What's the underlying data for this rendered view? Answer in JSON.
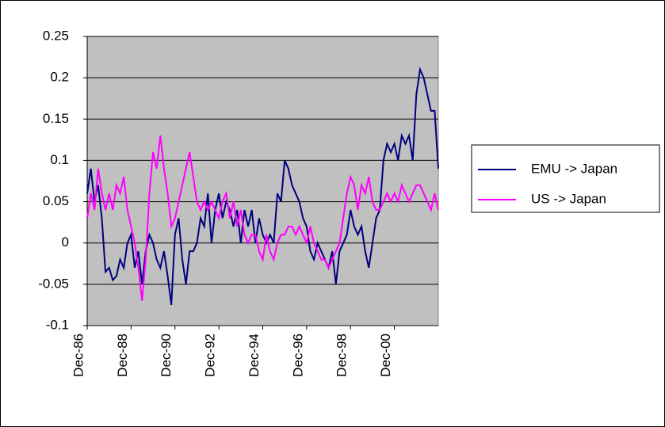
{
  "chart_data": {
    "type": "line",
    "categories": [
      "Dec-86",
      null,
      null,
      null,
      null,
      null,
      null,
      null,
      null,
      null,
      null,
      null,
      "Dec-88",
      null,
      null,
      null,
      null,
      null,
      null,
      null,
      null,
      null,
      null,
      null,
      "Dec-90",
      null,
      null,
      null,
      null,
      null,
      null,
      null,
      null,
      null,
      null,
      null,
      "Dec-92",
      null,
      null,
      null,
      null,
      null,
      null,
      null,
      null,
      null,
      null,
      null,
      "Dec-94",
      null,
      null,
      null,
      null,
      null,
      null,
      null,
      null,
      null,
      null,
      null,
      "Dec-96",
      null,
      null,
      null,
      null,
      null,
      null,
      null,
      null,
      null,
      null,
      null,
      "Dec-98",
      null,
      null,
      null,
      null,
      null,
      null,
      null,
      null,
      null,
      null,
      null,
      "Dec-00",
      null,
      null,
      null,
      null,
      null,
      null,
      null,
      null,
      null,
      null,
      null,
      null
    ],
    "series": [
      {
        "name": "EMU -> Japan",
        "color": "#000080",
        "values": [
          0.06,
          0.09,
          0.05,
          0.07,
          0.03,
          -0.035,
          -0.03,
          -0.045,
          -0.04,
          -0.02,
          -0.03,
          0.0,
          0.01,
          -0.03,
          -0.01,
          -0.05,
          -0.01,
          0.01,
          0.0,
          -0.02,
          -0.03,
          -0.01,
          -0.04,
          -0.075,
          0.01,
          0.03,
          -0.02,
          -0.05,
          -0.01,
          -0.01,
          0.0,
          0.03,
          0.02,
          0.06,
          0.0,
          0.04,
          0.06,
          0.03,
          0.05,
          0.04,
          0.02,
          0.04,
          0.0,
          0.04,
          0.02,
          0.04,
          0.0,
          0.03,
          0.01,
          0.0,
          0.01,
          0.0,
          0.06,
          0.05,
          0.1,
          0.09,
          0.07,
          0.06,
          0.05,
          0.03,
          0.02,
          -0.01,
          -0.02,
          0.0,
          -0.01,
          -0.02,
          -0.03,
          -0.01,
          -0.05,
          -0.01,
          0.0,
          0.01,
          0.04,
          0.02,
          0.01,
          0.02,
          -0.01,
          -0.03,
          0.0,
          0.03,
          0.04,
          0.1,
          0.12,
          0.11,
          0.12,
          0.1,
          0.13,
          0.12,
          0.13,
          0.1,
          0.18,
          0.21,
          0.2,
          0.18,
          0.16,
          0.16,
          0.09
        ]
      },
      {
        "name": "US -> Japan",
        "color": "#ff00ff",
        "values": [
          0.03,
          0.06,
          0.04,
          0.09,
          0.06,
          0.04,
          0.06,
          0.04,
          0.07,
          0.06,
          0.08,
          0.04,
          0.02,
          0.0,
          -0.03,
          -0.07,
          -0.02,
          0.06,
          0.11,
          0.09,
          0.13,
          0.09,
          0.06,
          0.02,
          0.03,
          0.05,
          0.07,
          0.09,
          0.11,
          0.08,
          0.05,
          0.04,
          0.05,
          0.04,
          0.05,
          0.04,
          0.03,
          0.05,
          0.06,
          0.03,
          0.05,
          0.02,
          0.04,
          0.01,
          0.0,
          0.01,
          0.01,
          -0.01,
          -0.02,
          0.01,
          -0.01,
          -0.02,
          0.0,
          0.01,
          0.01,
          0.02,
          0.02,
          0.01,
          0.02,
          0.01,
          0.0,
          0.02,
          0.0,
          -0.01,
          -0.02,
          -0.02,
          -0.03,
          -0.02,
          -0.01,
          0.0,
          0.03,
          0.06,
          0.08,
          0.07,
          0.04,
          0.07,
          0.06,
          0.08,
          0.05,
          0.04,
          0.04,
          0.05,
          0.06,
          0.05,
          0.06,
          0.05,
          0.07,
          0.06,
          0.05,
          0.06,
          0.07,
          0.07,
          0.06,
          0.05,
          0.04,
          0.06,
          0.04
        ]
      }
    ],
    "ylim": [
      -0.1,
      0.25
    ],
    "yticks": [
      -0.1,
      -0.05,
      0,
      0.05,
      0.1,
      0.15,
      0.2,
      0.25
    ],
    "grid": true,
    "legend": "right",
    "plot_background": "#c0c0c0"
  }
}
